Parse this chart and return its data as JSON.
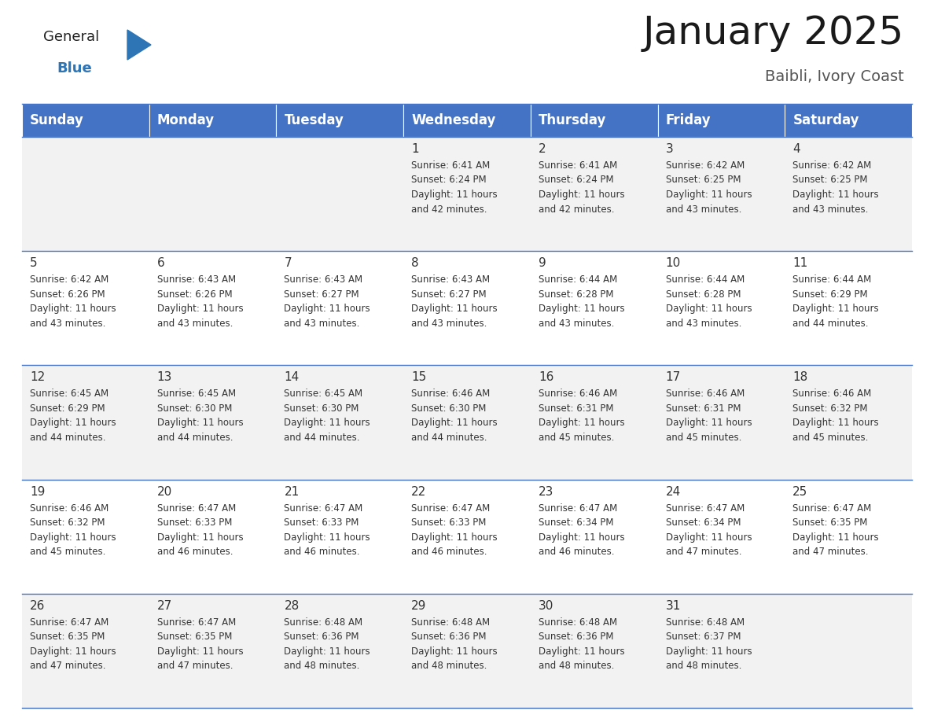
{
  "title": "January 2025",
  "subtitle": "Baibli, Ivory Coast",
  "days_of_week": [
    "Sunday",
    "Monday",
    "Tuesday",
    "Wednesday",
    "Thursday",
    "Friday",
    "Saturday"
  ],
  "header_bg": "#4472C4",
  "header_text_color": "#FFFFFF",
  "row_bg_odd": "#F2F2F2",
  "row_bg_even": "#FFFFFF",
  "divider_color": "#4472C4",
  "cell_text_color": "#333333",
  "day_num_color": "#333333",
  "calendar_data": [
    [
      "",
      "",
      "",
      "1\nSunrise: 6:41 AM\nSunset: 6:24 PM\nDaylight: 11 hours\nand 42 minutes.",
      "2\nSunrise: 6:41 AM\nSunset: 6:24 PM\nDaylight: 11 hours\nand 42 minutes.",
      "3\nSunrise: 6:42 AM\nSunset: 6:25 PM\nDaylight: 11 hours\nand 43 minutes.",
      "4\nSunrise: 6:42 AM\nSunset: 6:25 PM\nDaylight: 11 hours\nand 43 minutes."
    ],
    [
      "5\nSunrise: 6:42 AM\nSunset: 6:26 PM\nDaylight: 11 hours\nand 43 minutes.",
      "6\nSunrise: 6:43 AM\nSunset: 6:26 PM\nDaylight: 11 hours\nand 43 minutes.",
      "7\nSunrise: 6:43 AM\nSunset: 6:27 PM\nDaylight: 11 hours\nand 43 minutes.",
      "8\nSunrise: 6:43 AM\nSunset: 6:27 PM\nDaylight: 11 hours\nand 43 minutes.",
      "9\nSunrise: 6:44 AM\nSunset: 6:28 PM\nDaylight: 11 hours\nand 43 minutes.",
      "10\nSunrise: 6:44 AM\nSunset: 6:28 PM\nDaylight: 11 hours\nand 43 minutes.",
      "11\nSunrise: 6:44 AM\nSunset: 6:29 PM\nDaylight: 11 hours\nand 44 minutes."
    ],
    [
      "12\nSunrise: 6:45 AM\nSunset: 6:29 PM\nDaylight: 11 hours\nand 44 minutes.",
      "13\nSunrise: 6:45 AM\nSunset: 6:30 PM\nDaylight: 11 hours\nand 44 minutes.",
      "14\nSunrise: 6:45 AM\nSunset: 6:30 PM\nDaylight: 11 hours\nand 44 minutes.",
      "15\nSunrise: 6:46 AM\nSunset: 6:30 PM\nDaylight: 11 hours\nand 44 minutes.",
      "16\nSunrise: 6:46 AM\nSunset: 6:31 PM\nDaylight: 11 hours\nand 45 minutes.",
      "17\nSunrise: 6:46 AM\nSunset: 6:31 PM\nDaylight: 11 hours\nand 45 minutes.",
      "18\nSunrise: 6:46 AM\nSunset: 6:32 PM\nDaylight: 11 hours\nand 45 minutes."
    ],
    [
      "19\nSunrise: 6:46 AM\nSunset: 6:32 PM\nDaylight: 11 hours\nand 45 minutes.",
      "20\nSunrise: 6:47 AM\nSunset: 6:33 PM\nDaylight: 11 hours\nand 46 minutes.",
      "21\nSunrise: 6:47 AM\nSunset: 6:33 PM\nDaylight: 11 hours\nand 46 minutes.",
      "22\nSunrise: 6:47 AM\nSunset: 6:33 PM\nDaylight: 11 hours\nand 46 minutes.",
      "23\nSunrise: 6:47 AM\nSunset: 6:34 PM\nDaylight: 11 hours\nand 46 minutes.",
      "24\nSunrise: 6:47 AM\nSunset: 6:34 PM\nDaylight: 11 hours\nand 47 minutes.",
      "25\nSunrise: 6:47 AM\nSunset: 6:35 PM\nDaylight: 11 hours\nand 47 minutes."
    ],
    [
      "26\nSunrise: 6:47 AM\nSunset: 6:35 PM\nDaylight: 11 hours\nand 47 minutes.",
      "27\nSunrise: 6:47 AM\nSunset: 6:35 PM\nDaylight: 11 hours\nand 47 minutes.",
      "28\nSunrise: 6:48 AM\nSunset: 6:36 PM\nDaylight: 11 hours\nand 48 minutes.",
      "29\nSunrise: 6:48 AM\nSunset: 6:36 PM\nDaylight: 11 hours\nand 48 minutes.",
      "30\nSunrise: 6:48 AM\nSunset: 6:36 PM\nDaylight: 11 hours\nand 48 minutes.",
      "31\nSunrise: 6:48 AM\nSunset: 6:37 PM\nDaylight: 11 hours\nand 48 minutes.",
      ""
    ]
  ],
  "logo_text_general": "General",
  "logo_text_blue": "Blue",
  "logo_color_general": "#222222",
  "logo_color_blue": "#2E75B6",
  "logo_triangle_color": "#2E75B6",
  "title_fontsize": 36,
  "subtitle_fontsize": 14,
  "header_fontsize": 12,
  "day_num_fontsize": 11,
  "cell_fontsize": 8.5
}
